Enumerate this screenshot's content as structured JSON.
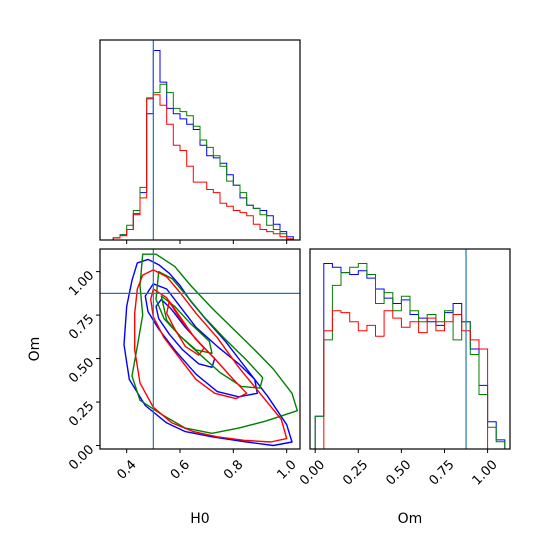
{
  "chart_data": {
    "type": "corner",
    "colors": {
      "blue": "#0000ff",
      "green": "#008000",
      "red": "#ff0000",
      "truth": "#1f77b4"
    },
    "truths": {
      "H0": 0.5,
      "Om": 0.875
    },
    "params": [
      "H0",
      "Om"
    ],
    "panels": [
      {
        "id": "h0-hist",
        "type": "step-histogram",
        "xlim": [
          0.3,
          1.05
        ],
        "xticks": [
          0.4,
          0.6,
          0.8,
          1.0
        ],
        "xlabel": "",
        "ylabel": "",
        "truth_x": 0.5,
        "bin_edges": [
          0.3,
          0.325,
          0.35,
          0.375,
          0.4,
          0.425,
          0.45,
          0.475,
          0.5,
          0.525,
          0.55,
          0.575,
          0.6,
          0.625,
          0.65,
          0.675,
          0.7,
          0.725,
          0.75,
          0.775,
          0.8,
          0.825,
          0.85,
          0.875,
          0.9,
          0.925,
          0.95,
          0.975,
          1.0,
          1.025,
          1.05
        ],
        "ymax": 190,
        "series": [
          {
            "name": "",
            "color": "#0000ff",
            "counts": [
              0,
              0,
              2,
              5,
              10,
              25,
              45,
              120,
              180,
              150,
              125,
              120,
              115,
              110,
              105,
              90,
              80,
              78,
              73,
              62,
              52,
              40,
              33,
              30,
              28,
              23,
              15,
              8,
              3,
              0
            ]
          },
          {
            "name": "",
            "color": "#008000",
            "counts": [
              0,
              0,
              2,
              5,
              14,
              28,
              50,
              135,
              140,
              148,
              140,
              125,
              122,
              118,
              108,
              95,
              88,
              80,
              70,
              56,
              52,
              45,
              33,
              30,
              24,
              14,
              10,
              6,
              1,
              0
            ]
          },
          {
            "name": "",
            "color": "#ff0000",
            "counts": [
              0,
              0,
              2,
              4,
              10,
              24,
              40,
              134,
              138,
              128,
              110,
              90,
              85,
              70,
              55,
              55,
              48,
              45,
              35,
              32,
              28,
              26,
              23,
              15,
              10,
              8,
              6,
              3,
              1,
              0
            ]
          }
        ]
      },
      {
        "id": "om-hist",
        "type": "step-histogram",
        "xlim": [
          -0.03,
          1.13
        ],
        "xticks": [
          0.0,
          0.25,
          0.5,
          0.75,
          1.0
        ],
        "xticklabels": [
          "0.00",
          "0.25",
          "0.50",
          "0.75",
          "1.00"
        ],
        "xlabel": "Om",
        "ylabel": "",
        "truth_x": 0.875,
        "bin_edges": [
          -0.03,
          0.0,
          0.05,
          0.1,
          0.15,
          0.2,
          0.25,
          0.3,
          0.35,
          0.4,
          0.45,
          0.5,
          0.55,
          0.6,
          0.65,
          0.7,
          0.75,
          0.8,
          0.85,
          0.9,
          0.95,
          1.0,
          1.05,
          1.1,
          1.13
        ],
        "ymax": 110,
        "series": [
          {
            "name": "",
            "color": "#0000ff",
            "counts": [
              0,
              18,
              102,
              100,
              97,
              96,
              98,
              94,
              88,
              83,
              80,
              82,
              74,
              72,
              70,
              68,
              75,
              80,
              70,
              55,
              35,
              15,
              5,
              0
            ]
          },
          {
            "name": "",
            "color": "#008000",
            "counts": [
              0,
              18,
              60,
              90,
              97,
              100,
              102,
              96,
              80,
              86,
              76,
              84,
              76,
              70,
              74,
              70,
              76,
              60,
              70,
              52,
              30,
              12,
              4,
              0
            ]
          },
          {
            "name": "",
            "color": "#ff0000",
            "counts": [
              0,
              0,
              65,
              76,
              75,
              70,
              65,
              68,
              62,
              76,
              72,
              67,
              70,
              64,
              72,
              65,
              70,
              74,
              65,
              60,
              55,
              0,
              0,
              0
            ]
          }
        ]
      },
      {
        "id": "h0-om-contour",
        "type": "contour",
        "xlim": [
          0.3,
          1.05
        ],
        "ylim": [
          -0.02,
          1.13
        ],
        "xticks": [
          0.4,
          0.6,
          0.8,
          1.0
        ],
        "yticks": [
          0.0,
          0.25,
          0.5,
          0.75,
          1.0
        ],
        "xticklabels": [
          "0.4",
          "0.6",
          "0.8",
          "1.0"
        ],
        "yticklabels": [
          "0.00",
          "0.25",
          "0.50",
          "0.75",
          "1.00"
        ],
        "xlabel": "H0",
        "ylabel": "Om",
        "truth_x": 0.5,
        "truth_y": 0.875,
        "series": [
          {
            "name": "",
            "color": "#0000ff",
            "contours": [
              [
                [
                  0.44,
                  1.05
                ],
                [
                  0.48,
                  1.07
                ],
                [
                  0.52,
                  1.04
                ],
                [
                  0.56,
                  0.99
                ],
                [
                  0.6,
                  0.92
                ],
                [
                  0.64,
                  0.83
                ],
                [
                  0.7,
                  0.72
                ],
                [
                  0.77,
                  0.6
                ],
                [
                  0.85,
                  0.44
                ],
                [
                  0.93,
                  0.28
                ],
                [
                  1.0,
                  0.12
                ],
                [
                  1.02,
                  0.02
                ],
                [
                  0.95,
                  0.0
                ],
                [
                  0.85,
                  0.02
                ],
                [
                  0.72,
                  0.05
                ],
                [
                  0.62,
                  0.08
                ],
                [
                  0.55,
                  0.13
                ],
                [
                  0.47,
                  0.23
                ],
                [
                  0.41,
                  0.38
                ],
                [
                  0.39,
                  0.58
                ],
                [
                  0.4,
                  0.8
                ],
                [
                  0.42,
                  0.95
                ],
                [
                  0.44,
                  1.05
                ]
              ],
              [
                [
                  0.5,
                  0.93
                ],
                [
                  0.55,
                  0.9
                ],
                [
                  0.6,
                  0.8
                ],
                [
                  0.66,
                  0.68
                ],
                [
                  0.74,
                  0.57
                ],
                [
                  0.82,
                  0.47
                ],
                [
                  0.88,
                  0.38
                ],
                [
                  0.89,
                  0.3
                ],
                [
                  0.82,
                  0.28
                ],
                [
                  0.74,
                  0.31
                ],
                [
                  0.66,
                  0.41
                ],
                [
                  0.58,
                  0.55
                ],
                [
                  0.52,
                  0.67
                ],
                [
                  0.48,
                  0.77
                ],
                [
                  0.47,
                  0.86
                ],
                [
                  0.5,
                  0.93
                ]
              ],
              [
                [
                  0.53,
                  0.84
                ],
                [
                  0.57,
                  0.78
                ],
                [
                  0.62,
                  0.68
                ],
                [
                  0.68,
                  0.58
                ],
                [
                  0.73,
                  0.5
                ],
                [
                  0.72,
                  0.45
                ],
                [
                  0.67,
                  0.47
                ],
                [
                  0.61,
                  0.55
                ],
                [
                  0.56,
                  0.64
                ],
                [
                  0.52,
                  0.73
                ],
                [
                  0.51,
                  0.8
                ],
                [
                  0.53,
                  0.84
                ]
              ]
            ]
          },
          {
            "name": "",
            "color": "#008000",
            "contours": [
              [
                [
                  0.46,
                  1.1
                ],
                [
                  0.51,
                  1.1
                ],
                [
                  0.58,
                  1.03
                ],
                [
                  0.64,
                  0.92
                ],
                [
                  0.72,
                  0.79
                ],
                [
                  0.8,
                  0.67
                ],
                [
                  0.88,
                  0.55
                ],
                [
                  0.95,
                  0.44
                ],
                [
                  1.02,
                  0.3
                ],
                [
                  1.04,
                  0.2
                ],
                [
                  1.0,
                  0.18
                ],
                [
                  0.92,
                  0.14
                ],
                [
                  0.82,
                  0.1
                ],
                [
                  0.72,
                  0.07
                ],
                [
                  0.62,
                  0.1
                ],
                [
                  0.53,
                  0.18
                ],
                [
                  0.45,
                  0.26
                ],
                [
                  0.42,
                  0.4
                ],
                [
                  0.44,
                  0.57
                ],
                [
                  0.46,
                  0.75
                ],
                [
                  0.45,
                  0.92
                ],
                [
                  0.46,
                  1.1
                ]
              ],
              [
                [
                  0.52,
                  1.0
                ],
                [
                  0.57,
                  0.96
                ],
                [
                  0.62,
                  0.87
                ],
                [
                  0.69,
                  0.74
                ],
                [
                  0.77,
                  0.61
                ],
                [
                  0.85,
                  0.49
                ],
                [
                  0.91,
                  0.39
                ],
                [
                  0.9,
                  0.33
                ],
                [
                  0.83,
                  0.34
                ],
                [
                  0.75,
                  0.42
                ],
                [
                  0.67,
                  0.53
                ],
                [
                  0.6,
                  0.63
                ],
                [
                  0.54,
                  0.73
                ],
                [
                  0.51,
                  0.84
                ],
                [
                  0.52,
                  1.0
                ]
              ],
              [
                [
                  0.53,
                  0.86
                ],
                [
                  0.58,
                  0.8
                ],
                [
                  0.64,
                  0.7
                ],
                [
                  0.71,
                  0.6
                ],
                [
                  0.72,
                  0.53
                ],
                [
                  0.66,
                  0.55
                ],
                [
                  0.6,
                  0.63
                ],
                [
                  0.55,
                  0.72
                ],
                [
                  0.53,
                  0.86
                ]
              ]
            ]
          },
          {
            "name": "",
            "color": "#ff0000",
            "contours": [
              [
                [
                  0.46,
                  0.98
                ],
                [
                  0.5,
                  1.01
                ],
                [
                  0.55,
                  0.97
                ],
                [
                  0.6,
                  0.88
                ],
                [
                  0.66,
                  0.76
                ],
                [
                  0.74,
                  0.62
                ],
                [
                  0.82,
                  0.45
                ],
                [
                  0.9,
                  0.3
                ],
                [
                  0.98,
                  0.15
                ],
                [
                  1.0,
                  0.04
                ],
                [
                  0.94,
                  0.02
                ],
                [
                  0.84,
                  0.03
                ],
                [
                  0.74,
                  0.05
                ],
                [
                  0.65,
                  0.08
                ],
                [
                  0.57,
                  0.13
                ],
                [
                  0.5,
                  0.22
                ],
                [
                  0.45,
                  0.36
                ],
                [
                  0.43,
                  0.55
                ],
                [
                  0.43,
                  0.76
                ],
                [
                  0.44,
                  0.9
                ],
                [
                  0.46,
                  0.98
                ]
              ],
              [
                [
                  0.5,
                  0.9
                ],
                [
                  0.55,
                  0.85
                ],
                [
                  0.6,
                  0.73
                ],
                [
                  0.66,
                  0.61
                ],
                [
                  0.73,
                  0.5
                ],
                [
                  0.8,
                  0.38
                ],
                [
                  0.85,
                  0.3
                ],
                [
                  0.81,
                  0.27
                ],
                [
                  0.73,
                  0.3
                ],
                [
                  0.66,
                  0.38
                ],
                [
                  0.6,
                  0.5
                ],
                [
                  0.54,
                  0.62
                ],
                [
                  0.5,
                  0.74
                ],
                [
                  0.49,
                  0.84
                ],
                [
                  0.5,
                  0.9
                ]
              ],
              [
                [
                  0.56,
                  0.83
                ],
                [
                  0.6,
                  0.74
                ],
                [
                  0.65,
                  0.63
                ],
                [
                  0.69,
                  0.56
                ],
                [
                  0.67,
                  0.52
                ],
                [
                  0.62,
                  0.57
                ],
                [
                  0.58,
                  0.67
                ],
                [
                  0.55,
                  0.76
                ],
                [
                  0.56,
                  0.83
                ]
              ]
            ]
          }
        ]
      }
    ]
  }
}
